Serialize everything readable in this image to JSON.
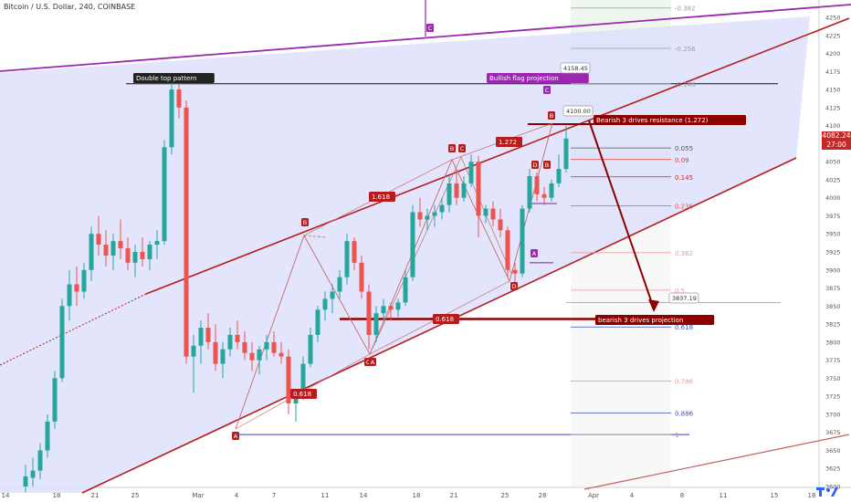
{
  "header": {
    "symbol": "Bitcoin / U.S. Dollar, 240, COINBASE"
  },
  "price_tag": {
    "price": "4082.24",
    "countdown": "27:00"
  },
  "colors": {
    "up": "#26a69a",
    "down": "#ef5350",
    "channel_fill": "#dde0fb",
    "channel_line": "#b71c1c",
    "purple": "#9c27b0",
    "navy": "#3f3fbf",
    "dark_red": "#8e0000"
  },
  "chart_data": {
    "type": "candlestick",
    "ylim": [
      3600,
      4275
    ],
    "y_ticks": [
      3600,
      3625,
      3650,
      3675,
      3700,
      3725,
      3750,
      3775,
      3800,
      3825,
      3850,
      3875,
      3900,
      3925,
      3950,
      3975,
      4000,
      4025,
      4050,
      4075,
      4100,
      4125,
      4150,
      4175,
      4200,
      4225,
      4250
    ],
    "x_ticks": [
      "14",
      "18",
      "21",
      "25",
      "Mar",
      "4",
      "7",
      "11",
      "14",
      "18",
      "21",
      "25",
      "28",
      "Apr",
      "4",
      "8",
      "11",
      "15",
      "18"
    ],
    "last_price": 4082.24,
    "annotations": {
      "double_top": "Double top pattern",
      "bullish_flag": "Bullish flag projection",
      "bullish_flag_price": "4158.45",
      "bearish_resistance": "Bearish 3 drives resistance (1.272)",
      "bearish_resistance_price": "4100.00",
      "bearish_projection": "bearish 3 drives projection",
      "bearish_projection_price": "3837.19",
      "ratio_1618": "1.618",
      "ratio_1272": "1.272",
      "ratio_0618_left": "0.618",
      "ratio_0618_mid": "0.618"
    },
    "pattern_points": [
      "A",
      "B",
      "C",
      "A",
      "B",
      "C",
      "D",
      "B",
      "D",
      "B",
      "C",
      "D",
      "A",
      "C"
    ],
    "fib_levels": [
      {
        "label": "-0.382",
        "price": 4263,
        "color": "#9e9e9e"
      },
      {
        "label": "-0.256",
        "price": 4207,
        "color": "#9e9e9e"
      },
      {
        "label": "-0.146",
        "price": 4158,
        "color": "#9e9e9e"
      },
      {
        "label": "0.055",
        "price": 4069,
        "color": "#555555"
      },
      {
        "label": "0.09",
        "price": 4053,
        "color": "#e53935"
      },
      {
        "label": "0.145",
        "price": 4029,
        "color": "#c62828"
      },
      {
        "label": "0.236",
        "price": 3989,
        "color": "#ef5350"
      },
      {
        "label": "0.382",
        "price": 3924,
        "color": "#ef9a9a"
      },
      {
        "label": "0.5",
        "price": 3872,
        "color": "#ef9a9a"
      },
      {
        "label": "0.618",
        "price": 3821,
        "color": "#3f51b5"
      },
      {
        "label": "0.786",
        "price": 3746,
        "color": "#ef9a9a"
      },
      {
        "label": "0.886",
        "price": 3702,
        "color": "#3f51b5"
      },
      {
        "label": "1",
        "price": 3672,
        "color": "#9e9e9e"
      }
    ],
    "candles": [
      [
        3600,
        3630,
        3592,
        3614
      ],
      [
        3612,
        3640,
        3600,
        3622
      ],
      [
        3622,
        3660,
        3610,
        3650
      ],
      [
        3650,
        3700,
        3640,
        3690
      ],
      [
        3690,
        3760,
        3680,
        3750
      ],
      [
        3750,
        3860,
        3745,
        3850
      ],
      [
        3850,
        3900,
        3830,
        3880
      ],
      [
        3880,
        3905,
        3850,
        3870
      ],
      [
        3870,
        3910,
        3860,
        3900
      ],
      [
        3900,
        3960,
        3885,
        3950
      ],
      [
        3950,
        3975,
        3920,
        3935
      ],
      [
        3935,
        3955,
        3905,
        3920
      ],
      [
        3920,
        3950,
        3900,
        3940
      ],
      [
        3940,
        3970,
        3915,
        3930
      ],
      [
        3930,
        3945,
        3900,
        3910
      ],
      [
        3910,
        3935,
        3890,
        3925
      ],
      [
        3925,
        3945,
        3905,
        3915
      ],
      [
        3915,
        3940,
        3900,
        3935
      ],
      [
        3935,
        3955,
        3915,
        3940
      ],
      [
        3940,
        4080,
        3935,
        4070
      ],
      [
        4070,
        4160,
        4060,
        4150
      ],
      [
        4150,
        4158,
        4110,
        4125
      ],
      [
        4125,
        4135,
        3770,
        3780
      ],
      [
        3780,
        3810,
        3730,
        3795
      ],
      [
        3795,
        3830,
        3770,
        3820
      ],
      [
        3820,
        3840,
        3790,
        3800
      ],
      [
        3800,
        3825,
        3760,
        3770
      ],
      [
        3770,
        3800,
        3750,
        3790
      ],
      [
        3790,
        3820,
        3780,
        3810
      ],
      [
        3810,
        3830,
        3790,
        3800
      ],
      [
        3800,
        3815,
        3775,
        3785
      ],
      [
        3785,
        3800,
        3760,
        3775
      ],
      [
        3775,
        3795,
        3755,
        3790
      ],
      [
        3790,
        3810,
        3775,
        3800
      ],
      [
        3800,
        3815,
        3780,
        3785
      ],
      [
        3785,
        3800,
        3770,
        3780
      ],
      [
        3780,
        3790,
        3700,
        3715
      ],
      [
        3715,
        3735,
        3690,
        3725
      ],
      [
        3725,
        3780,
        3720,
        3770
      ],
      [
        3770,
        3820,
        3765,
        3810
      ],
      [
        3810,
        3850,
        3800,
        3845
      ],
      [
        3845,
        3870,
        3830,
        3860
      ],
      [
        3860,
        3880,
        3840,
        3870
      ],
      [
        3870,
        3900,
        3860,
        3890
      ],
      [
        3890,
        3950,
        3880,
        3940
      ],
      [
        3940,
        3945,
        3900,
        3910
      ],
      [
        3910,
        3920,
        3860,
        3870
      ],
      [
        3870,
        3880,
        3790,
        3810
      ],
      [
        3810,
        3850,
        3800,
        3840
      ],
      [
        3840,
        3860,
        3830,
        3850
      ],
      [
        3850,
        3855,
        3830,
        3845
      ],
      [
        3845,
        3860,
        3835,
        3855
      ],
      [
        3855,
        3900,
        3850,
        3890
      ],
      [
        3890,
        3990,
        3885,
        3980
      ],
      [
        3980,
        4000,
        3960,
        3970
      ],
      [
        3970,
        3985,
        3955,
        3975
      ],
      [
        3975,
        3990,
        3960,
        3980
      ],
      [
        3980,
        4000,
        3970,
        3990
      ],
      [
        3990,
        4030,
        3980,
        4020
      ],
      [
        4020,
        4040,
        3990,
        4000
      ],
      [
        4000,
        4030,
        3995,
        4020
      ],
      [
        4020,
        4060,
        4015,
        4050
      ],
      [
        4050,
        4058,
        3945,
        3975
      ],
      [
        3975,
        3990,
        3965,
        3985
      ],
      [
        3985,
        3995,
        3960,
        3970
      ],
      [
        3970,
        3985,
        3945,
        3955
      ],
      [
        3955,
        3960,
        3890,
        3900
      ],
      [
        3900,
        3910,
        3880,
        3895
      ],
      [
        3895,
        3990,
        3890,
        3985
      ],
      [
        3985,
        4040,
        3980,
        4030
      ],
      [
        4030,
        4035,
        3995,
        4005
      ],
      [
        4005,
        4015,
        3990,
        4000
      ],
      [
        4000,
        4025,
        3995,
        4020
      ],
      [
        4020,
        4060,
        4015,
        4040
      ],
      [
        4040,
        4100,
        4035,
        4082
      ]
    ]
  }
}
